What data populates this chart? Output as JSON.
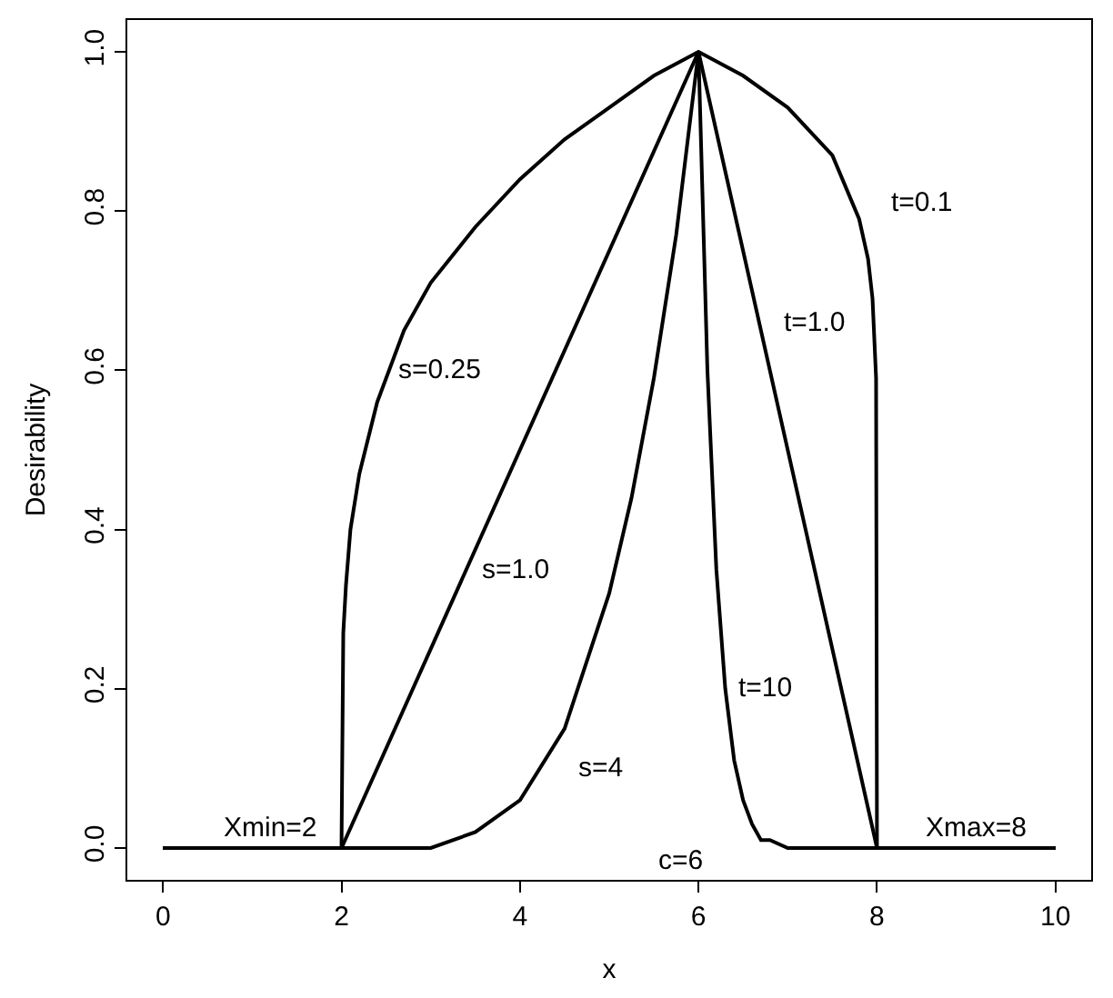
{
  "chart_data": {
    "type": "line",
    "xlabel": "x",
    "ylabel": "Desirability",
    "xlim": [
      -0.4,
      10.4
    ],
    "ylim": [
      -0.04,
      1.04
    ],
    "xticks": [
      0,
      2,
      4,
      6,
      8,
      10
    ],
    "yticks": [
      {
        "value": 0,
        "label": "0.0"
      },
      {
        "value": 0.2,
        "label": "0.2"
      },
      {
        "value": 0.4,
        "label": "0.4"
      },
      {
        "value": 0.6,
        "label": "0.6"
      },
      {
        "value": 0.8,
        "label": "0.8"
      },
      {
        "value": 1,
        "label": "1.0"
      }
    ],
    "marker": "none",
    "line_style": "solid",
    "series": [
      {
        "color": "#000000",
        "x": [
          0,
          2,
          2.02,
          2.05,
          2.1,
          2.2,
          2.4,
          2.7,
          3,
          3.5,
          4,
          4.5,
          5,
          5.5,
          6,
          6.5,
          7,
          7.5,
          7.8,
          7.9,
          7.95,
          7.99,
          8,
          10
        ],
        "values": [
          0,
          0,
          0.27,
          0.33,
          0.4,
          0.47,
          0.56,
          0.65,
          0.71,
          0.78,
          0.84,
          0.89,
          0.93,
          0.97,
          1,
          0.97,
          0.93,
          0.87,
          0.79,
          0.74,
          0.69,
          0.59,
          0,
          0
        ]
      },
      {
        "color": "#000000",
        "x": [
          0,
          2,
          6,
          8,
          10
        ],
        "values": [
          0,
          0,
          1,
          0,
          0
        ]
      },
      {
        "color": "#000000",
        "x": [
          0,
          2,
          2.5,
          3,
          3.5,
          4,
          4.5,
          5,
          5.25,
          5.5,
          5.75,
          6,
          6.1,
          6.2,
          6.3,
          6.4,
          6.5,
          6.6,
          6.7,
          6.8,
          7,
          10
        ],
        "values": [
          0,
          0,
          0,
          0,
          0.02,
          0.06,
          0.15,
          0.32,
          0.44,
          0.59,
          0.77,
          1,
          0.6,
          0.35,
          0.2,
          0.11,
          0.06,
          0.03,
          0.01,
          0.01,
          0,
          0
        ]
      }
    ],
    "annotations": [
      "Xmin=2",
      "s=0.25",
      "s=1.0",
      "s=4",
      "c=6",
      "t=10",
      "t=1.0",
      "t=0.1",
      "Xmax=8"
    ]
  }
}
